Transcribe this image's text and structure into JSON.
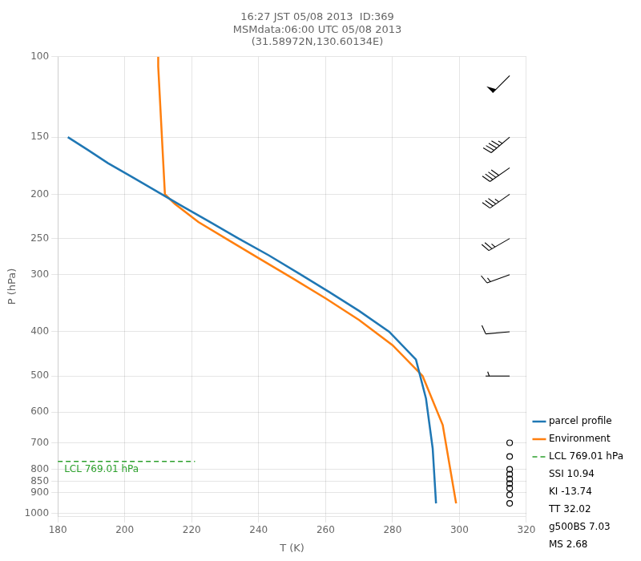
{
  "chart_data": {
    "type": "line",
    "title": "16:27 JST 05/08 2013  ID:369\nMSMdata:06:00 UTC 05/08 2013\n(31.58972N,130.60134E)",
    "xlabel": "T (K)",
    "ylabel": "P (hPa)",
    "log": "y",
    "xlim": [
      180,
      320
    ],
    "ylim": [
      1013,
      100
    ],
    "xticks": [
      180,
      200,
      220,
      240,
      260,
      280,
      300,
      320
    ],
    "yticks": [
      100,
      150,
      200,
      250,
      300,
      400,
      500,
      600,
      700,
      800,
      850,
      900,
      1000
    ],
    "grid": true,
    "legend": "lower right",
    "series": [
      {
        "name": "parcel profile",
        "color": "#1f77b4",
        "x": [
          183,
          189,
          195,
          202,
          209,
          217,
          225,
          234,
          243,
          252,
          261,
          270,
          279,
          287,
          290,
          292,
          293
        ],
        "values": [
          150,
          160,
          171,
          183,
          196,
          212,
          229,
          250,
          272,
          298,
          327,
          360,
          400,
          460,
          560,
          720,
          950
        ]
      },
      {
        "name": "Environment",
        "color": "#ff7f0e",
        "x": [
          210,
          210,
          212,
          215,
          222,
          231,
          240,
          250,
          260,
          270,
          280,
          289,
          295,
          299
        ],
        "values": [
          100,
          105,
          200,
          210,
          230,
          252,
          276,
          305,
          338,
          377,
          428,
          500,
          640,
          950
        ]
      },
      {
        "name": "LCL 769.01 hPa",
        "color": "#2ca02c",
        "line_style": "dashed",
        "x": [
          180,
          221
        ],
        "values": [
          769.01,
          769.01
        ]
      }
    ],
    "annotations": [
      {
        "text": "LCL 769.01 hPa"
      }
    ],
    "stats_text": [
      "SSI 10.94",
      "KI -13.74",
      "TT 32.02",
      "g500BS 7.03",
      "MS 2.68"
    ],
    "wind_barbs": {
      "x": 315,
      "pressure": [
        110,
        150,
        175,
        200,
        250,
        300,
        400,
        500
      ],
      "speed": [
        50,
        45,
        40,
        35,
        25,
        15,
        10,
        5
      ],
      "direction": [
        225,
        230,
        235,
        235,
        240,
        250,
        265,
        270
      ],
      "calm_pressure": [
        700,
        750,
        800,
        820,
        840,
        860,
        880,
        910,
        950
      ]
    }
  }
}
